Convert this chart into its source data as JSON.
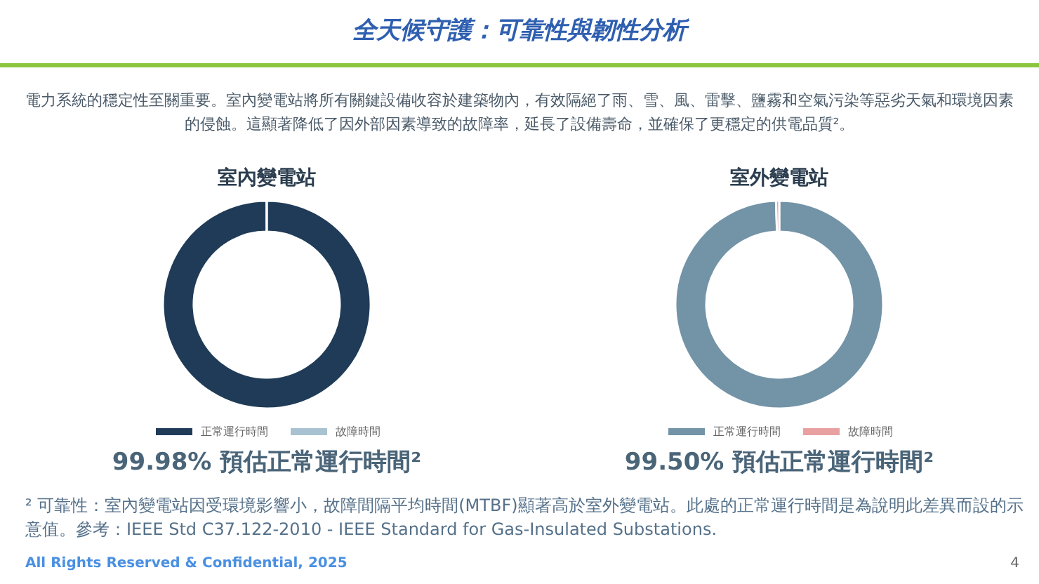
{
  "chart_data": [
    {
      "type": "other",
      "title": "全天候守護：可靠性與韌性分析",
      "subtitle": "電力系統的穩定性至關重要。室內變電站將所有關鍵設備收容於建築物內，有效隔絕了雨、雪、風、雷擊、鹽霧和空氣污染等惡劣天氣和環境因素的侵蝕。這顯著降低了因外部因素導致的故障率，延長了設備壽命，並確保了更穩定的供電品質²。",
      "annotations": [
        "² 可靠性：室內變電站因受環境影響小，故障間隔平均時間(MTBF)顯著高於室外變電站。此處的正常運行時間是為說明此差異而設的示意值。參考：IEEE Std C37.122-2010 - IEEE Standard for Gas-Insulated Substations.",
        "All Rights Reserved & Confidential, 2025",
        "4"
      ]
    },
    {
      "type": "donut",
      "title": "室內變電站",
      "categories": [
        "正常運行時間",
        "故障時間"
      ],
      "values": [
        99.98,
        0.02
      ],
      "colors": [
        "#1f3b57",
        "#a9c2d2"
      ],
      "legend": "bottom",
      "annotations": [
        "99.98% 預估正常運行時間²"
      ]
    },
    {
      "type": "donut",
      "title": "室外變電站",
      "categories": [
        "正常運行時間",
        "故障時間"
      ],
      "values": [
        99.5,
        0.5
      ],
      "colors": [
        "#7393a7",
        "#e8a0a0"
      ],
      "legend": "bottom",
      "annotations": [
        "99.50% 預估正常運行時間²"
      ]
    }
  ]
}
